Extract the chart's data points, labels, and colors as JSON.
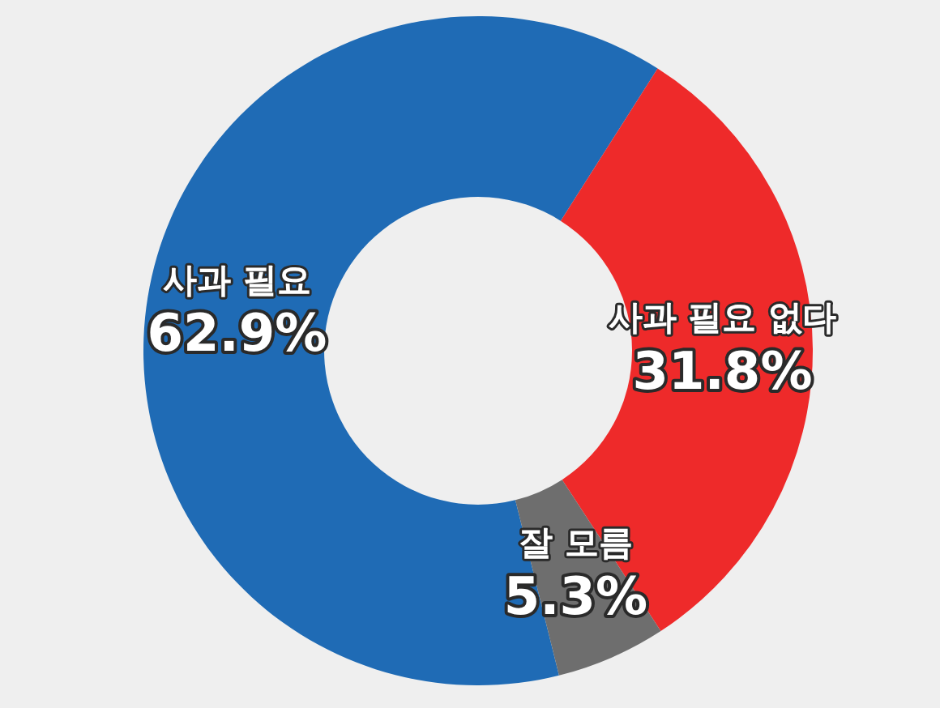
{
  "chart_data": {
    "type": "donut",
    "categories": [
      "사과 필요",
      "사과 필요 없다",
      "잘 모름"
    ],
    "values": [
      62.9,
      31.8,
      5.3
    ],
    "colors": [
      "#1f6bb5",
      "#ee2a2a",
      "#6e6e6e"
    ],
    "value_labels": [
      "62.9%",
      "31.8%",
      "5.3%"
    ],
    "legend": false
  }
}
